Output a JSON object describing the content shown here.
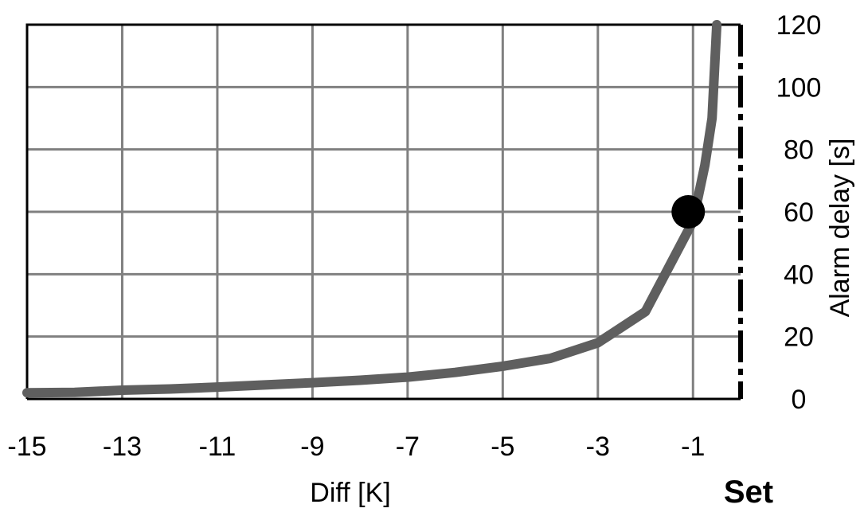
{
  "chart_data": {
    "type": "line",
    "xlabel": "Diff [K]",
    "ylabel": "Alarm delay [s]",
    "xlim": [
      -15,
      0
    ],
    "ylim": [
      0,
      120
    ],
    "x_ticks": [
      -15,
      -13,
      -11,
      -9,
      -7,
      -5,
      -3,
      -1
    ],
    "y_ticks": [
      0,
      20,
      40,
      60,
      80,
      100,
      120
    ],
    "grid": true,
    "series": [
      {
        "color": "#5f5f5f",
        "points": [
          {
            "x": -15,
            "y": 2
          },
          {
            "x": -14,
            "y": 2.1
          },
          {
            "x": -13,
            "y": 2.8
          },
          {
            "x": -12,
            "y": 3.2
          },
          {
            "x": -11,
            "y": 3.8
          },
          {
            "x": -10,
            "y": 4.5
          },
          {
            "x": -9,
            "y": 5.2
          },
          {
            "x": -8,
            "y": 6
          },
          {
            "x": -7,
            "y": 7
          },
          {
            "x": -6,
            "y": 8.5
          },
          {
            "x": -5,
            "y": 10.5
          },
          {
            "x": -4,
            "y": 13
          },
          {
            "x": -3,
            "y": 18
          },
          {
            "x": -2,
            "y": 28
          },
          {
            "x": -1,
            "y": 57
          },
          {
            "x": -0.75,
            "y": 75
          },
          {
            "x": -0.6,
            "y": 90
          },
          {
            "x": -0.5,
            "y": 120
          }
        ]
      }
    ],
    "marker": {
      "x": -1,
      "y": 60,
      "color": "#000000"
    },
    "set_line": {
      "x": 0,
      "label": "Set"
    }
  }
}
